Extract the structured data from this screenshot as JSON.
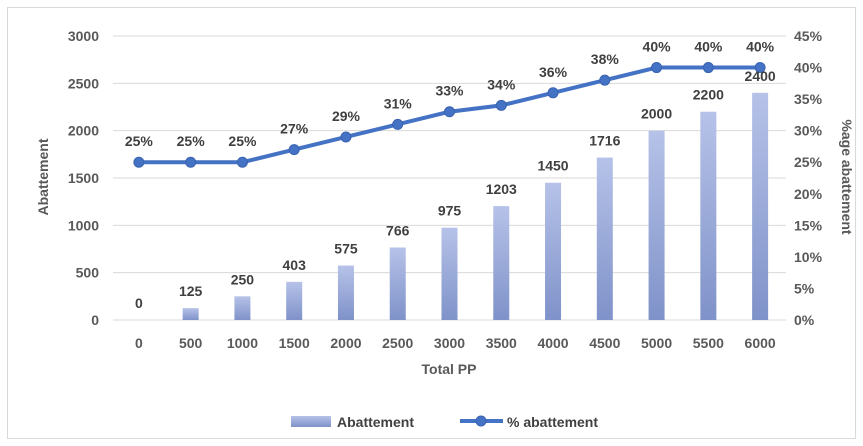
{
  "chart_data": {
    "type": "bar",
    "title": "",
    "xlabel": "Total PP",
    "ylabel": "Abattement",
    "y2label": "%age abattement",
    "categories": [
      "0",
      "500",
      "1000",
      "1500",
      "2000",
      "2500",
      "3000",
      "3500",
      "4000",
      "4500",
      "5000",
      "5500",
      "6000"
    ],
    "series": [
      {
        "name": "Abattement",
        "type": "bar",
        "axis": "left",
        "values": [
          0,
          125,
          250,
          403,
          575,
          766,
          975,
          1203,
          1450,
          1716,
          2000,
          2200,
          2400
        ],
        "labels": [
          "0",
          "125",
          "250",
          "403",
          "575",
          "766",
          "975",
          "1203",
          "1450",
          "1716",
          "2000",
          "2200",
          "2400"
        ],
        "color": "#8ea0d6"
      },
      {
        "name": "% abattement",
        "type": "line",
        "axis": "right",
        "values": [
          25,
          25,
          25,
          27,
          29,
          31,
          33,
          34,
          36,
          38,
          40,
          40,
          40
        ],
        "labels": [
          "25%",
          "25%",
          "25%",
          "27%",
          "29%",
          "31%",
          "33%",
          "34%",
          "36%",
          "38%",
          "40%",
          "40%",
          "40%"
        ],
        "color": "#4472c4"
      }
    ],
    "ylim": [
      0,
      3000
    ],
    "yticks": [
      "0",
      "500",
      "1000",
      "1500",
      "2000",
      "2500",
      "3000"
    ],
    "y2lim": [
      0,
      45
    ],
    "y2ticks": [
      "0%",
      "5%",
      "10%",
      "15%",
      "20%",
      "25%",
      "30%",
      "35%",
      "40%",
      "45%"
    ],
    "grid": true,
    "legend": "bottom"
  }
}
